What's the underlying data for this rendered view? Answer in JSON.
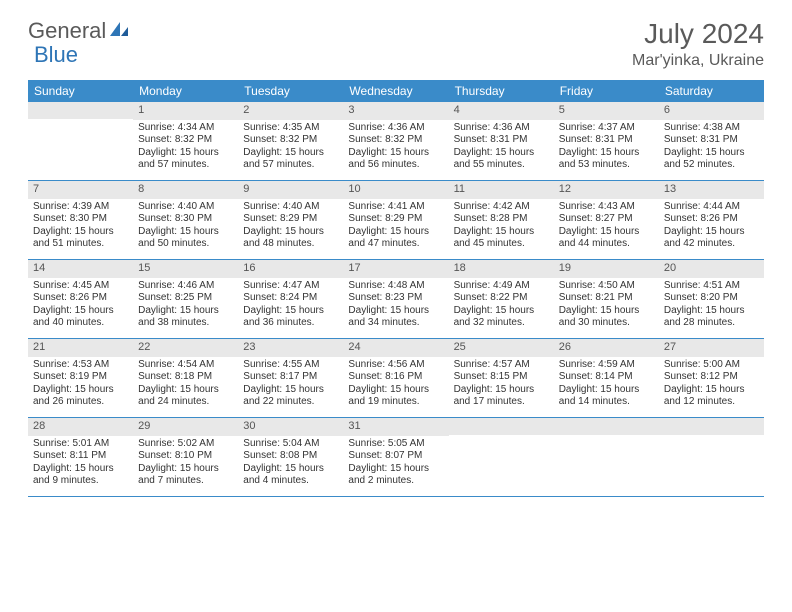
{
  "logo": {
    "text1": "General",
    "text2": "Blue"
  },
  "title": "July 2024",
  "location": "Mar'yinka, Ukraine",
  "colors": {
    "header_bg": "#3a8bc9",
    "header_text": "#ffffff",
    "daynum_bg": "#e8e8e8",
    "border": "#3a8bc9",
    "text": "#333333",
    "title_text": "#5a5a5a"
  },
  "day_labels": [
    "Sunday",
    "Monday",
    "Tuesday",
    "Wednesday",
    "Thursday",
    "Friday",
    "Saturday"
  ],
  "weeks": [
    [
      {
        "num": "",
        "lines": []
      },
      {
        "num": "1",
        "lines": [
          "Sunrise: 4:34 AM",
          "Sunset: 8:32 PM",
          "Daylight: 15 hours",
          "and 57 minutes."
        ]
      },
      {
        "num": "2",
        "lines": [
          "Sunrise: 4:35 AM",
          "Sunset: 8:32 PM",
          "Daylight: 15 hours",
          "and 57 minutes."
        ]
      },
      {
        "num": "3",
        "lines": [
          "Sunrise: 4:36 AM",
          "Sunset: 8:32 PM",
          "Daylight: 15 hours",
          "and 56 minutes."
        ]
      },
      {
        "num": "4",
        "lines": [
          "Sunrise: 4:36 AM",
          "Sunset: 8:31 PM",
          "Daylight: 15 hours",
          "and 55 minutes."
        ]
      },
      {
        "num": "5",
        "lines": [
          "Sunrise: 4:37 AM",
          "Sunset: 8:31 PM",
          "Daylight: 15 hours",
          "and 53 minutes."
        ]
      },
      {
        "num": "6",
        "lines": [
          "Sunrise: 4:38 AM",
          "Sunset: 8:31 PM",
          "Daylight: 15 hours",
          "and 52 minutes."
        ]
      }
    ],
    [
      {
        "num": "7",
        "lines": [
          "Sunrise: 4:39 AM",
          "Sunset: 8:30 PM",
          "Daylight: 15 hours",
          "and 51 minutes."
        ]
      },
      {
        "num": "8",
        "lines": [
          "Sunrise: 4:40 AM",
          "Sunset: 8:30 PM",
          "Daylight: 15 hours",
          "and 50 minutes."
        ]
      },
      {
        "num": "9",
        "lines": [
          "Sunrise: 4:40 AM",
          "Sunset: 8:29 PM",
          "Daylight: 15 hours",
          "and 48 minutes."
        ]
      },
      {
        "num": "10",
        "lines": [
          "Sunrise: 4:41 AM",
          "Sunset: 8:29 PM",
          "Daylight: 15 hours",
          "and 47 minutes."
        ]
      },
      {
        "num": "11",
        "lines": [
          "Sunrise: 4:42 AM",
          "Sunset: 8:28 PM",
          "Daylight: 15 hours",
          "and 45 minutes."
        ]
      },
      {
        "num": "12",
        "lines": [
          "Sunrise: 4:43 AM",
          "Sunset: 8:27 PM",
          "Daylight: 15 hours",
          "and 44 minutes."
        ]
      },
      {
        "num": "13",
        "lines": [
          "Sunrise: 4:44 AM",
          "Sunset: 8:26 PM",
          "Daylight: 15 hours",
          "and 42 minutes."
        ]
      }
    ],
    [
      {
        "num": "14",
        "lines": [
          "Sunrise: 4:45 AM",
          "Sunset: 8:26 PM",
          "Daylight: 15 hours",
          "and 40 minutes."
        ]
      },
      {
        "num": "15",
        "lines": [
          "Sunrise: 4:46 AM",
          "Sunset: 8:25 PM",
          "Daylight: 15 hours",
          "and 38 minutes."
        ]
      },
      {
        "num": "16",
        "lines": [
          "Sunrise: 4:47 AM",
          "Sunset: 8:24 PM",
          "Daylight: 15 hours",
          "and 36 minutes."
        ]
      },
      {
        "num": "17",
        "lines": [
          "Sunrise: 4:48 AM",
          "Sunset: 8:23 PM",
          "Daylight: 15 hours",
          "and 34 minutes."
        ]
      },
      {
        "num": "18",
        "lines": [
          "Sunrise: 4:49 AM",
          "Sunset: 8:22 PM",
          "Daylight: 15 hours",
          "and 32 minutes."
        ]
      },
      {
        "num": "19",
        "lines": [
          "Sunrise: 4:50 AM",
          "Sunset: 8:21 PM",
          "Daylight: 15 hours",
          "and 30 minutes."
        ]
      },
      {
        "num": "20",
        "lines": [
          "Sunrise: 4:51 AM",
          "Sunset: 8:20 PM",
          "Daylight: 15 hours",
          "and 28 minutes."
        ]
      }
    ],
    [
      {
        "num": "21",
        "lines": [
          "Sunrise: 4:53 AM",
          "Sunset: 8:19 PM",
          "Daylight: 15 hours",
          "and 26 minutes."
        ]
      },
      {
        "num": "22",
        "lines": [
          "Sunrise: 4:54 AM",
          "Sunset: 8:18 PM",
          "Daylight: 15 hours",
          "and 24 minutes."
        ]
      },
      {
        "num": "23",
        "lines": [
          "Sunrise: 4:55 AM",
          "Sunset: 8:17 PM",
          "Daylight: 15 hours",
          "and 22 minutes."
        ]
      },
      {
        "num": "24",
        "lines": [
          "Sunrise: 4:56 AM",
          "Sunset: 8:16 PM",
          "Daylight: 15 hours",
          "and 19 minutes."
        ]
      },
      {
        "num": "25",
        "lines": [
          "Sunrise: 4:57 AM",
          "Sunset: 8:15 PM",
          "Daylight: 15 hours",
          "and 17 minutes."
        ]
      },
      {
        "num": "26",
        "lines": [
          "Sunrise: 4:59 AM",
          "Sunset: 8:14 PM",
          "Daylight: 15 hours",
          "and 14 minutes."
        ]
      },
      {
        "num": "27",
        "lines": [
          "Sunrise: 5:00 AM",
          "Sunset: 8:12 PM",
          "Daylight: 15 hours",
          "and 12 minutes."
        ]
      }
    ],
    [
      {
        "num": "28",
        "lines": [
          "Sunrise: 5:01 AM",
          "Sunset: 8:11 PM",
          "Daylight: 15 hours",
          "and 9 minutes."
        ]
      },
      {
        "num": "29",
        "lines": [
          "Sunrise: 5:02 AM",
          "Sunset: 8:10 PM",
          "Daylight: 15 hours",
          "and 7 minutes."
        ]
      },
      {
        "num": "30",
        "lines": [
          "Sunrise: 5:04 AM",
          "Sunset: 8:08 PM",
          "Daylight: 15 hours",
          "and 4 minutes."
        ]
      },
      {
        "num": "31",
        "lines": [
          "Sunrise: 5:05 AM",
          "Sunset: 8:07 PM",
          "Daylight: 15 hours",
          "and 2 minutes."
        ]
      },
      {
        "num": "",
        "lines": []
      },
      {
        "num": "",
        "lines": []
      },
      {
        "num": "",
        "lines": []
      }
    ]
  ]
}
